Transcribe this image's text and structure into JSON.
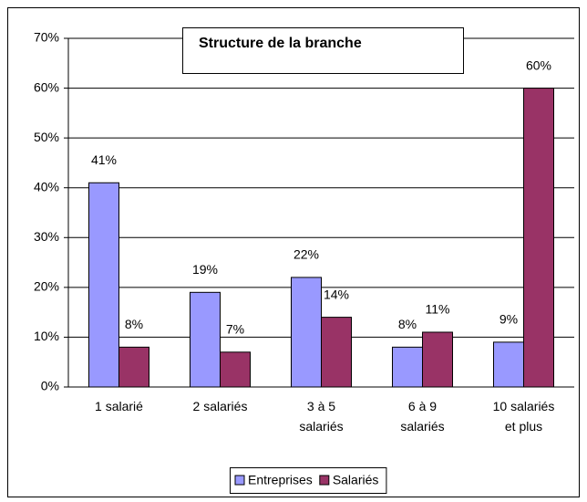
{
  "chart_data": {
    "type": "bar",
    "title": "Structure de la branche",
    "categories": [
      "1 salarié",
      "2 salariés",
      "3 à 5\nsalariés",
      "6 à 9\nsalariés",
      "10 salariés\net plus"
    ],
    "series": [
      {
        "name": "Entreprises",
        "color": "#9999ff",
        "values": [
          41,
          19,
          22,
          8,
          9
        ],
        "value_labels": [
          "41%",
          "19%",
          "22%",
          "8%",
          "9%"
        ]
      },
      {
        "name": "Salariés",
        "color": "#993366",
        "values": [
          8,
          7,
          14,
          11,
          60
        ],
        "value_labels": [
          "8%",
          "7%",
          "14%",
          "11%",
          "60%"
        ]
      }
    ],
    "ylim": [
      0,
      70
    ],
    "yticks": [
      {
        "value": 0,
        "label": "0%"
      },
      {
        "value": 10,
        "label": "10%"
      },
      {
        "value": 20,
        "label": "20%"
      },
      {
        "value": 30,
        "label": "30%"
      },
      {
        "value": 40,
        "label": "40%"
      },
      {
        "value": 50,
        "label": "50%"
      },
      {
        "value": 60,
        "label": "60%"
      },
      {
        "value": 70,
        "label": "70%"
      }
    ],
    "grid": true,
    "legend": "bottom"
  }
}
